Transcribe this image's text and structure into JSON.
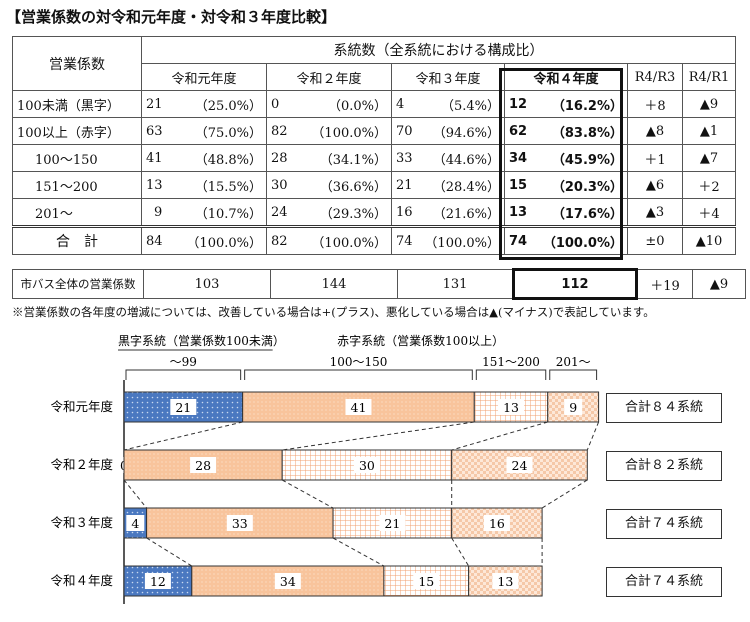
{
  "title": "【営業係数の対令和元年度・対令和３年度比較】",
  "table": {
    "corner": "営業係数",
    "group_header": "系統数（全系統における構成比）",
    "years": [
      "令和元年度",
      "令和２年度",
      "令和３年度",
      "令和４年度"
    ],
    "diff_headers": [
      "R4/R3",
      "R4/R1"
    ],
    "rows": [
      {
        "label": "100未満（黒字）",
        "cells": [
          [
            "21",
            "（25.0%）"
          ],
          [
            "0",
            "（0.0%）"
          ],
          [
            "4",
            "（5.4%）"
          ],
          [
            "12",
            "（16.2%）"
          ]
        ],
        "d1": "＋8",
        "d2": "▲9"
      },
      {
        "label": "100以上（赤字）",
        "cells": [
          [
            "63",
            "（75.0%）"
          ],
          [
            "82",
            "（100.0%）"
          ],
          [
            "70",
            "（94.6%）"
          ],
          [
            "62",
            "（83.8%）"
          ]
        ],
        "d1": "▲8",
        "d2": "▲1"
      },
      {
        "label": "100～150",
        "cells": [
          [
            "41",
            "（48.8%）"
          ],
          [
            "28",
            "（34.1%）"
          ],
          [
            "33",
            "（44.6%）"
          ],
          [
            "34",
            "（45.9%）"
          ]
        ],
        "d1": "＋1",
        "d2": "▲7"
      },
      {
        "label": "151～200",
        "cells": [
          [
            "13",
            "（15.5%）"
          ],
          [
            "30",
            "（36.6%）"
          ],
          [
            "21",
            "（28.4%）"
          ],
          [
            "15",
            "（20.3%）"
          ]
        ],
        "d1": "▲6",
        "d2": "＋2"
      },
      {
        "label": "201～",
        "cells": [
          [
            "9",
            "（10.7%）"
          ],
          [
            "24",
            "（29.3%）"
          ],
          [
            "16",
            "（21.6%）"
          ],
          [
            "13",
            "（17.6%）"
          ]
        ],
        "d1": "▲3",
        "d2": "＋4"
      }
    ],
    "total": {
      "label": "合　計",
      "cells": [
        [
          "84",
          "（100.0%）"
        ],
        [
          "82",
          "（100.0%）"
        ],
        [
          "74",
          "（100.0%）"
        ],
        [
          "74",
          "（100.0%）"
        ]
      ],
      "d1": "±0",
      "d2": "▲10"
    },
    "city": {
      "label": "市バス全体の営業係数",
      "values": [
        "103",
        "144",
        "131",
        "112"
      ],
      "d1": "＋19",
      "d2": "▲9"
    }
  },
  "note": "※営業係数の各年度の増減については、改善している場合は+(プラス)、悪化している場合は▲(マイナス)で表記しています。",
  "chart_data": {
    "type": "bar",
    "stacked": true,
    "orientation": "horizontal",
    "categories": [
      "令和元年度",
      "令和２年度",
      "令和３年度",
      "令和４年度"
    ],
    "series": [
      {
        "name": "～99",
        "values": [
          21,
          0,
          4,
          12
        ],
        "color": "#4a78c0"
      },
      {
        "name": "100～150",
        "values": [
          41,
          28,
          33,
          34
        ],
        "color": "#f8c8a0"
      },
      {
        "name": "151～200",
        "values": [
          13,
          30,
          21,
          15
        ],
        "color": "#f8d8c0"
      },
      {
        "name": "201～",
        "values": [
          9,
          24,
          16,
          13
        ],
        "color": "#fbe2cf"
      }
    ],
    "group_labels": {
      "black": "黒字系統（営業係数100未満）",
      "red": "赤字系統（営業係数100以上）"
    },
    "totals": [
      "合計８４系統",
      "合計８２系統",
      "合計７４系統",
      "合計７４系統"
    ]
  }
}
